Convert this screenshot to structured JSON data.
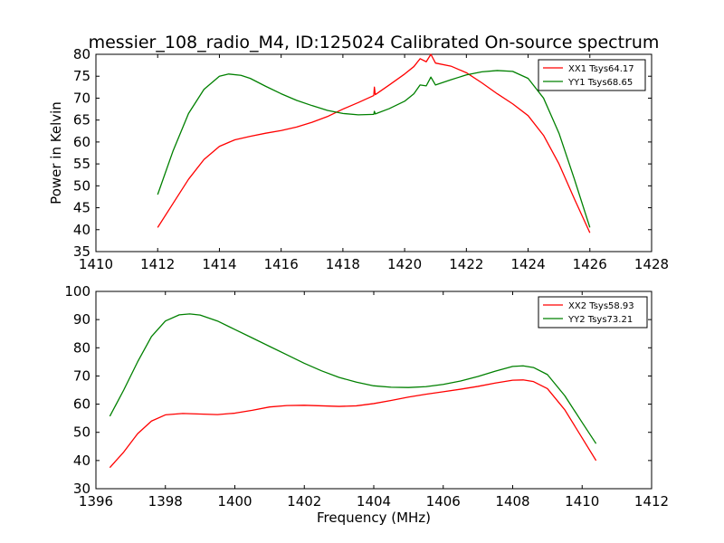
{
  "chart_data": [
    {
      "type": "line",
      "title": "messier_108_radio_M4, ID:125024 Calibrated On-source spectrum",
      "xlabel": "",
      "ylabel": "Power in Kelvin",
      "xlim": [
        1410,
        1428
      ],
      "ylim": [
        35,
        80
      ],
      "xticks": [
        1410,
        1412,
        1414,
        1416,
        1418,
        1420,
        1422,
        1424,
        1426,
        1428
      ],
      "yticks": [
        35,
        40,
        45,
        50,
        55,
        60,
        65,
        70,
        75,
        80
      ],
      "grid": false,
      "legend": "top-right",
      "series": [
        {
          "name": "XX1 Tsys64.17",
          "color": "#ff0000",
          "points": [
            [
              1412.0,
              40.5
            ],
            [
              1412.5,
              46.0
            ],
            [
              1413.0,
              51.5
            ],
            [
              1413.5,
              56.0
            ],
            [
              1414.0,
              59.0
            ],
            [
              1414.5,
              60.5
            ],
            [
              1415.0,
              61.3
            ],
            [
              1415.5,
              62.0
            ],
            [
              1416.0,
              62.6
            ],
            [
              1416.5,
              63.4
            ],
            [
              1417.0,
              64.5
            ],
            [
              1417.5,
              65.8
            ],
            [
              1418.0,
              67.5
            ],
            [
              1418.5,
              69.0
            ],
            [
              1419.0,
              70.6
            ],
            [
              1419.02,
              72.5
            ],
            [
              1419.05,
              70.8
            ],
            [
              1419.5,
              73.0
            ],
            [
              1420.0,
              75.5
            ],
            [
              1420.3,
              77.2
            ],
            [
              1420.5,
              79.0
            ],
            [
              1420.7,
              78.3
            ],
            [
              1420.85,
              80.0
            ],
            [
              1421.0,
              78.0
            ],
            [
              1421.5,
              77.3
            ],
            [
              1422.0,
              75.8
            ],
            [
              1422.5,
              73.5
            ],
            [
              1423.0,
              71.0
            ],
            [
              1423.5,
              68.7
            ],
            [
              1424.0,
              66.0
            ],
            [
              1424.5,
              61.5
            ],
            [
              1425.0,
              55.0
            ],
            [
              1425.5,
              47.0
            ],
            [
              1426.0,
              39.3
            ]
          ]
        },
        {
          "name": "YY1 Tsys68.65",
          "color": "#008000",
          "points": [
            [
              1412.0,
              48.0
            ],
            [
              1412.5,
              58.0
            ],
            [
              1413.0,
              66.5
            ],
            [
              1413.5,
              72.0
            ],
            [
              1414.0,
              75.0
            ],
            [
              1414.3,
              75.5
            ],
            [
              1414.7,
              75.2
            ],
            [
              1415.0,
              74.5
            ],
            [
              1415.5,
              72.7
            ],
            [
              1416.0,
              71.0
            ],
            [
              1416.5,
              69.5
            ],
            [
              1417.0,
              68.3
            ],
            [
              1417.5,
              67.2
            ],
            [
              1418.0,
              66.5
            ],
            [
              1418.5,
              66.2
            ],
            [
              1419.0,
              66.3
            ],
            [
              1419.02,
              67.0
            ],
            [
              1419.05,
              66.4
            ],
            [
              1419.5,
              67.6
            ],
            [
              1420.0,
              69.3
            ],
            [
              1420.3,
              71.0
            ],
            [
              1420.5,
              73.0
            ],
            [
              1420.7,
              72.8
            ],
            [
              1420.85,
              74.8
            ],
            [
              1421.0,
              73.0
            ],
            [
              1421.5,
              74.2
            ],
            [
              1422.0,
              75.3
            ],
            [
              1422.5,
              76.0
            ],
            [
              1423.0,
              76.3
            ],
            [
              1423.5,
              76.1
            ],
            [
              1424.0,
              74.5
            ],
            [
              1424.5,
              70.0
            ],
            [
              1425.0,
              62.0
            ],
            [
              1425.5,
              51.5
            ],
            [
              1426.0,
              40.5
            ]
          ]
        }
      ]
    },
    {
      "type": "line",
      "title": "",
      "xlabel": "Frequency (MHz)",
      "ylabel": "",
      "xlim": [
        1396,
        1412
      ],
      "ylim": [
        30,
        100
      ],
      "xticks": [
        1396,
        1398,
        1400,
        1402,
        1404,
        1406,
        1408,
        1410,
        1412
      ],
      "yticks": [
        30,
        40,
        50,
        60,
        70,
        80,
        90,
        100
      ],
      "grid": false,
      "legend": "top-right",
      "series": [
        {
          "name": "XX2 Tsys58.93",
          "color": "#ff0000",
          "points": [
            [
              1396.4,
              37.5
            ],
            [
              1396.8,
              43.0
            ],
            [
              1397.2,
              49.5
            ],
            [
              1397.6,
              54.0
            ],
            [
              1398.0,
              56.2
            ],
            [
              1398.5,
              56.7
            ],
            [
              1399.0,
              56.5
            ],
            [
              1399.5,
              56.3
            ],
            [
              1400.0,
              56.8
            ],
            [
              1400.5,
              57.8
            ],
            [
              1401.0,
              59.0
            ],
            [
              1401.5,
              59.5
            ],
            [
              1402.0,
              59.6
            ],
            [
              1402.5,
              59.4
            ],
            [
              1403.0,
              59.2
            ],
            [
              1403.5,
              59.4
            ],
            [
              1404.0,
              60.2
            ],
            [
              1404.5,
              61.3
            ],
            [
              1405.0,
              62.5
            ],
            [
              1405.5,
              63.5
            ],
            [
              1406.0,
              64.4
            ],
            [
              1406.5,
              65.3
            ],
            [
              1407.0,
              66.3
            ],
            [
              1407.5,
              67.5
            ],
            [
              1408.0,
              68.5
            ],
            [
              1408.3,
              68.6
            ],
            [
              1408.6,
              68.0
            ],
            [
              1409.0,
              65.5
            ],
            [
              1409.5,
              58.0
            ],
            [
              1410.0,
              48.0
            ],
            [
              1410.4,
              40.0
            ]
          ]
        },
        {
          "name": "YY2 Tsys73.21",
          "color": "#008000",
          "points": [
            [
              1396.4,
              55.7
            ],
            [
              1396.8,
              65.0
            ],
            [
              1397.2,
              75.0
            ],
            [
              1397.6,
              84.0
            ],
            [
              1398.0,
              89.5
            ],
            [
              1398.4,
              91.7
            ],
            [
              1398.7,
              92.0
            ],
            [
              1399.0,
              91.6
            ],
            [
              1399.5,
              89.5
            ],
            [
              1400.0,
              86.5
            ],
            [
              1400.5,
              83.5
            ],
            [
              1401.0,
              80.5
            ],
            [
              1401.5,
              77.5
            ],
            [
              1402.0,
              74.5
            ],
            [
              1402.5,
              71.8
            ],
            [
              1403.0,
              69.5
            ],
            [
              1403.5,
              67.8
            ],
            [
              1404.0,
              66.5
            ],
            [
              1404.5,
              66.0
            ],
            [
              1405.0,
              65.9
            ],
            [
              1405.5,
              66.2
            ],
            [
              1406.0,
              67.0
            ],
            [
              1406.5,
              68.2
            ],
            [
              1407.0,
              69.8
            ],
            [
              1407.5,
              71.7
            ],
            [
              1408.0,
              73.4
            ],
            [
              1408.3,
              73.6
            ],
            [
              1408.6,
              73.0
            ],
            [
              1409.0,
              70.5
            ],
            [
              1409.5,
              63.0
            ],
            [
              1410.0,
              53.5
            ],
            [
              1410.4,
              46.0
            ]
          ]
        }
      ]
    }
  ]
}
